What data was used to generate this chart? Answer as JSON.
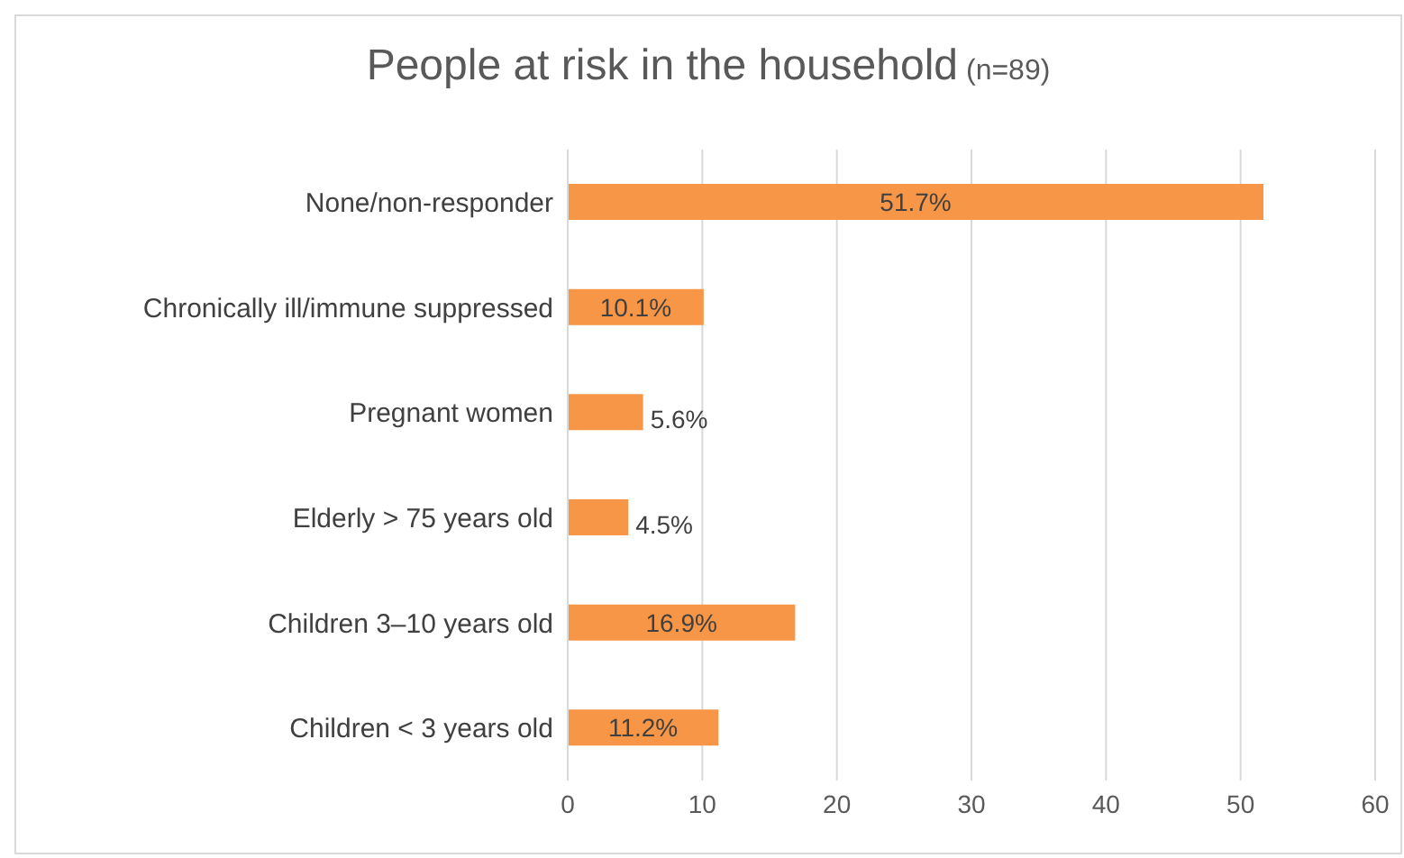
{
  "chart_data": {
    "type": "bar",
    "orientation": "horizontal",
    "title": "People at risk in the household",
    "subtitle": "(n=89)",
    "categories": [
      "None/non-responder",
      "Chronically ill/immune suppressed",
      "Pregnant women",
      "Elderly > 75 years old",
      "Children 3–10 years old",
      "Children < 3 years old"
    ],
    "values": [
      51.7,
      10.1,
      5.6,
      4.5,
      16.9,
      11.2
    ],
    "value_labels": [
      "51.7%",
      "10.1%",
      "5.6%",
      "4.5%",
      "16.9%",
      "11.2%"
    ],
    "color": "#f79646",
    "xlim": [
      0,
      60
    ],
    "xticks": [
      0,
      10,
      20,
      30,
      40,
      50,
      60
    ],
    "grid": "x"
  }
}
